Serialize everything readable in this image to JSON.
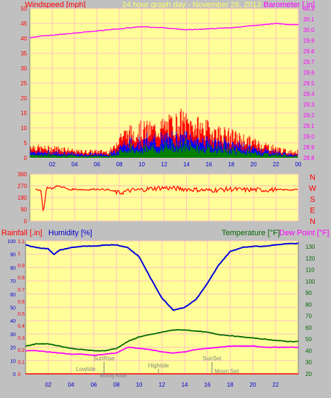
{
  "header": {
    "left_label": "Windspeed [mph]",
    "center_label": "24 hour graph day - November 26, 2013",
    "right_label": "Barometer [.in]"
  },
  "panel3_labels": {
    "rainfall": "Rainfall [.in]",
    "humidity": "Humidity [%]",
    "temperature": "Temperature [°F]",
    "dewpoint": "Dew Point [°F]"
  },
  "colors": {
    "background": "#ffff99",
    "frame": "#c0c0c0",
    "grid": "#ffc0c0",
    "windspeed": "#ff0000",
    "windavg": "#0000ff",
    "windmin": "#008000",
    "barometer": "#ff00ff",
    "direction": "#ff0000",
    "humidity": "#0000dd",
    "temperature": "#006600",
    "dewpoint": "#ff00ff",
    "rainfall": "#ff0000"
  },
  "chart_data": [
    {
      "type": "area",
      "x_ticks": [
        "02",
        "04",
        "06",
        "08",
        "10",
        "12",
        "14",
        "16",
        "18",
        "20",
        "22",
        "00"
      ],
      "left_axis": {
        "label": "Windspeed [mph]",
        "range": [
          0,
          50
        ],
        "ticks": [
          0,
          5,
          10,
          15,
          20,
          25,
          30,
          35,
          40,
          45,
          50
        ]
      },
      "right_axis": {
        "label": "Barometer [.in]",
        "range": [
          28.8,
          30.2
        ],
        "ticks": [
          "28.8",
          "28.9",
          "29.0",
          "29.1",
          "29.2",
          "29.3",
          "29.4",
          "29.5",
          "29.6",
          "29.7",
          "29.8",
          "29.9",
          "30.0",
          "30.1",
          "30.2"
        ]
      },
      "series": [
        {
          "name": "Windspeed",
          "x": [
            0,
            1,
            2,
            3,
            4,
            5,
            6,
            7,
            7.5,
            8,
            9,
            10,
            11,
            12,
            13,
            13.5,
            14,
            15,
            16,
            17,
            18,
            19,
            20,
            21,
            22,
            23,
            24
          ],
          "values": [
            4,
            3,
            3,
            3,
            2,
            2,
            2,
            2,
            3,
            7,
            8,
            9,
            9,
            10,
            11,
            12,
            11,
            10,
            9,
            8,
            7,
            6,
            5,
            4,
            3,
            2,
            2
          ]
        },
        {
          "name": "Barometer",
          "x": [
            0,
            2,
            4,
            6,
            8,
            10,
            12,
            14,
            16,
            18,
            20,
            22,
            23,
            24
          ],
          "values": [
            29.93,
            29.95,
            29.97,
            29.99,
            30.01,
            30.03,
            30.02,
            30.0,
            30.01,
            30.02,
            30.04,
            30.06,
            30.05,
            30.05
          ]
        }
      ]
    },
    {
      "type": "line",
      "x_ticks": [
        "02",
        "04",
        "06",
        "08",
        "10",
        "12",
        "14",
        "16",
        "18",
        "20",
        "22",
        "00"
      ],
      "left_axis": {
        "range": [
          0,
          360
        ],
        "ticks": [
          0,
          90,
          180,
          270,
          360
        ]
      },
      "right_axis": {
        "ticks": [
          "N",
          "W",
          "S",
          "E",
          "N"
        ]
      },
      "series": [
        {
          "name": "Wind Direction",
          "x": [
            0,
            0.5,
            1,
            1.2,
            1.5,
            2,
            2.5,
            3,
            3.5,
            4,
            5,
            6,
            7,
            8,
            9,
            10,
            11,
            12,
            13,
            14,
            15,
            16,
            17,
            18,
            19,
            20,
            21,
            22,
            23,
            24
          ],
          "values": [
            240,
            250,
            230,
            60,
            260,
            250,
            270,
            260,
            240,
            245,
            240,
            245,
            240,
            215,
            235,
            240,
            250,
            255,
            250,
            245,
            240,
            235,
            240,
            245,
            240,
            240,
            238,
            240,
            240,
            240
          ]
        }
      ]
    },
    {
      "type": "line",
      "x_ticks": [
        "02",
        "04",
        "06",
        "08",
        "10",
        "12",
        "14",
        "16",
        "18",
        "20",
        "22"
      ],
      "left_axis": {
        "range": [
          0,
          100
        ],
        "ticks": [
          0,
          10,
          20,
          30,
          40,
          50,
          60,
          70,
          80,
          90,
          100
        ]
      },
      "rain_axis": {
        "range": [
          0,
          1.1
        ],
        "ticks": [
          "0",
          "0.1",
          "0.2",
          "0.3",
          "0.4",
          "0.5",
          "0.6",
          "0.7",
          "0.8",
          "0.9",
          "1",
          "1.1"
        ]
      },
      "right_axis": {
        "range": [
          20,
          135
        ],
        "ticks": [
          20,
          30,
          40,
          50,
          60,
          70,
          80,
          90,
          100,
          110,
          120,
          130
        ]
      },
      "series": [
        {
          "name": "Humidity",
          "x": [
            0,
            0.5,
            1,
            2,
            2.5,
            3,
            4,
            5,
            6,
            7,
            8,
            9,
            10,
            11,
            12,
            13,
            14,
            15,
            16,
            17,
            18,
            19,
            20,
            21,
            22,
            23,
            24
          ],
          "values": [
            97,
            96,
            95,
            94,
            90,
            93,
            95,
            96,
            96,
            97,
            97,
            95,
            88,
            72,
            57,
            48,
            50,
            56,
            68,
            82,
            92,
            95,
            96,
            96,
            97,
            98,
            98
          ]
        },
        {
          "name": "Temperature",
          "x": [
            0,
            1,
            2,
            3,
            4,
            5,
            6,
            7,
            8,
            9,
            10,
            11,
            12,
            13,
            14,
            15,
            16,
            17,
            18,
            19,
            20,
            21,
            22,
            23,
            24
          ],
          "values": [
            44,
            46,
            46,
            44,
            42,
            41,
            40,
            40,
            42,
            48,
            52,
            54,
            56,
            58,
            58,
            57,
            56,
            54,
            53,
            52,
            51,
            50,
            49,
            48,
            48
          ]
        },
        {
          "name": "Dew Point",
          "x": [
            0,
            1,
            2,
            3,
            4,
            5,
            6,
            7,
            8,
            9,
            10,
            11,
            12,
            13,
            14,
            15,
            16,
            17,
            18,
            19,
            20,
            21,
            22,
            23,
            24
          ],
          "values": [
            40,
            40,
            39,
            38,
            37,
            37,
            36,
            37,
            38,
            43,
            42,
            41,
            39,
            38,
            39,
            41,
            42,
            43,
            44,
            44,
            44,
            43,
            43,
            43,
            43
          ]
        },
        {
          "name": "Rainfall",
          "x": [
            0,
            24
          ],
          "values": [
            0,
            0
          ]
        }
      ],
      "annotations": [
        {
          "text": "Lowtide",
          "x": 5.3
        },
        {
          "text": "SunRise",
          "x": 6.9
        },
        {
          "text": "Moon Rise",
          "x": 7.7
        },
        {
          "text": "Hightide",
          "x": 11.7
        },
        {
          "text": "SunSet",
          "x": 16.4
        },
        {
          "text": "Moon Set",
          "x": 17.7
        }
      ]
    }
  ]
}
